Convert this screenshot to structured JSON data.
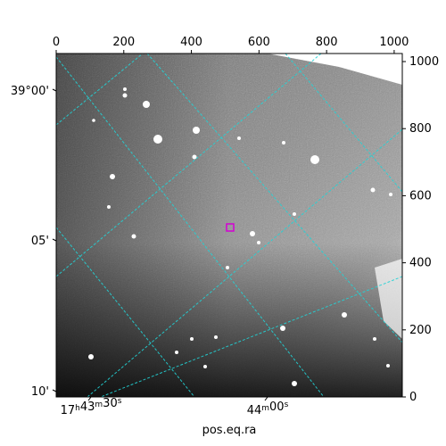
{
  "chart_data": {
    "type": "image",
    "title": "",
    "xlabel": "pos.eq.ra",
    "ylabel": "",
    "pixel_axis_x": {
      "ticks": [
        0,
        200,
        400,
        600,
        800,
        1000
      ],
      "range": [
        0,
        1024
      ]
    },
    "pixel_axis_y": {
      "ticks": [
        0,
        200,
        400,
        600,
        800,
        1000
      ],
      "range": [
        0,
        1024
      ]
    },
    "ra_ticks": [
      {
        "label_h": "17",
        "label_m": "43",
        "label_s": "30",
        "value": "17h43m30s"
      },
      {
        "label_h": "",
        "label_m": "44",
        "label_s": "00",
        "value": "44m00s"
      }
    ],
    "dec_ticks": [
      "39°00'",
      "05'",
      "10'"
    ],
    "grid_color": "#22d3d6",
    "marker": {
      "shape": "square",
      "color": "#d400d4"
    }
  }
}
